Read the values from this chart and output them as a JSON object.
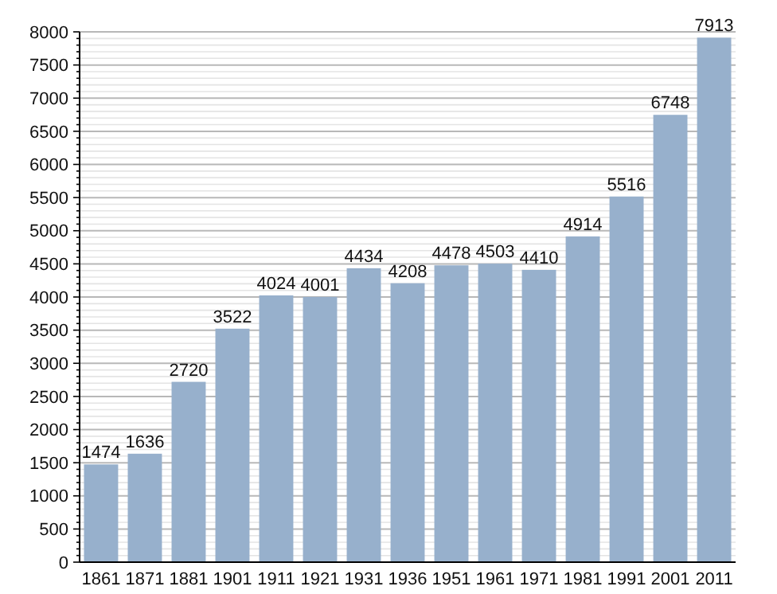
{
  "chart_data": {
    "type": "bar",
    "categories": [
      "1861",
      "1871",
      "1881",
      "1901",
      "1911",
      "1921",
      "1931",
      "1936",
      "1951",
      "1961",
      "1971",
      "1981",
      "1991",
      "2001",
      "2011"
    ],
    "values": [
      1474,
      1636,
      2720,
      3522,
      4024,
      4001,
      4434,
      4208,
      4478,
      4503,
      4410,
      4914,
      5516,
      6748,
      7913
    ],
    "color": "#97b0cc",
    "data_labels": true,
    "grid": "y",
    "ylim": [
      0,
      8000
    ],
    "yticks": [
      0,
      {
        "value": 100,
        "label": null
      },
      {
        "value": 200,
        "label": null
      },
      {
        "value": 300,
        "label": null
      },
      {
        "value": 400,
        "label": null
      },
      500,
      {
        "value": 600,
        "label": null
      },
      {
        "value": 700,
        "label": null
      },
      {
        "value": 800,
        "label": null
      },
      {
        "value": 900,
        "label": null
      },
      1000,
      {
        "value": 1100,
        "label": null
      },
      {
        "value": 1200,
        "label": null
      },
      {
        "value": 1300,
        "label": null
      },
      {
        "value": 1400,
        "label": null
      },
      1500,
      {
        "value": 1600,
        "label": null
      },
      {
        "value": 1700,
        "label": null
      },
      {
        "value": 1800,
        "label": null
      },
      {
        "value": 1900,
        "label": null
      },
      2000,
      {
        "value": 2100,
        "label": null
      },
      {
        "value": 2200,
        "label": null
      },
      {
        "value": 2300,
        "label": null
      },
      {
        "value": 2400,
        "label": null
      },
      2500,
      {
        "value": 2600,
        "label": null
      },
      {
        "value": 2700,
        "label": null
      },
      {
        "value": 2800,
        "label": null
      },
      {
        "value": 2900,
        "label": null
      },
      3000,
      {
        "value": 3100,
        "label": null
      },
      {
        "value": 3200,
        "label": null
      },
      {
        "value": 3300,
        "label": null
      },
      {
        "value": 3400,
        "label": null
      },
      3500,
      {
        "value": 3600,
        "label": null
      },
      {
        "value": 3700,
        "label": null
      },
      {
        "value": 3800,
        "label": null
      },
      {
        "value": 3900,
        "label": null
      },
      4000,
      {
        "value": 4100,
        "label": null
      },
      {
        "value": 4200,
        "label": null
      },
      {
        "value": 4300,
        "label": null
      },
      {
        "value": 4400,
        "label": null
      },
      4500,
      {
        "value": 4600,
        "label": null
      },
      {
        "value": 4700,
        "label": null
      },
      {
        "value": 4800,
        "label": null
      },
      {
        "value": 4900,
        "label": null
      },
      5000,
      {
        "value": 5100,
        "label": null
      },
      {
        "value": 5200,
        "label": null
      },
      {
        "value": 5300,
        "label": null
      },
      {
        "value": 5400,
        "label": null
      },
      5500,
      {
        "value": 5600,
        "label": null
      },
      {
        "value": 5700,
        "label": null
      },
      {
        "value": 5800,
        "label": null
      },
      {
        "value": 5900,
        "label": null
      },
      6000,
      {
        "value": 6100,
        "label": null
      },
      {
        "value": 6200,
        "label": null
      },
      {
        "value": 6300,
        "label": null
      },
      {
        "value": 6400,
        "label": null
      },
      6500,
      {
        "value": 6600,
        "label": null
      },
      {
        "value": 6700,
        "label": null
      },
      {
        "value": 6800,
        "label": null
      },
      {
        "value": 6900,
        "label": null
      },
      7000,
      {
        "value": 7100,
        "label": null
      },
      {
        "value": 7200,
        "label": null
      },
      {
        "value": 7300,
        "label": null
      },
      {
        "value": 7400,
        "label": null
      },
      7500,
      {
        "value": 7600,
        "label": null
      },
      {
        "value": 7700,
        "label": null
      },
      {
        "value": 7800,
        "label": null
      },
      {
        "value": 7900,
        "label": null
      },
      8000
    ]
  }
}
